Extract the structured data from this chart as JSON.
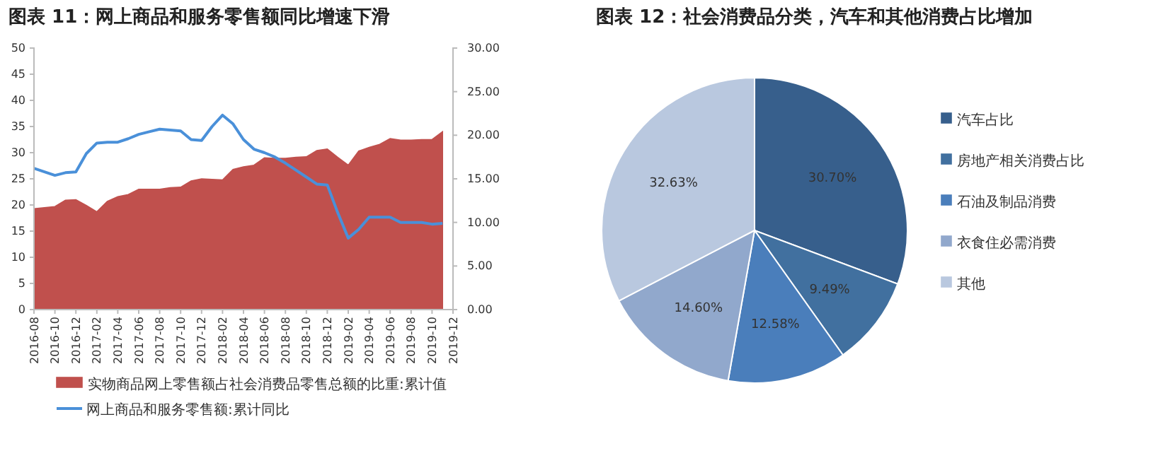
{
  "chart_data": [
    {
      "type": "area",
      "title": "图表 11：网上商品和服务零售额同比增速下滑",
      "categories": [
        "2016-08",
        null,
        "2016-10",
        null,
        "2016-12",
        null,
        "2017-02",
        null,
        "2017-04",
        null,
        "2017-06",
        null,
        "2017-08",
        null,
        "2017-10",
        null,
        "2017-12",
        null,
        "2018-02",
        null,
        "2018-04",
        null,
        "2018-06",
        null,
        "2018-08",
        null,
        "2018-10",
        null,
        "2018-12",
        null,
        "2019-02",
        null,
        "2019-04",
        null,
        "2019-06",
        null,
        "2019-08",
        null,
        "2019-10",
        null,
        "2019-12"
      ],
      "series": [
        {
          "name": "实物商品网上零售额占社会消费品零售总额的比重:累计值",
          "type": "area",
          "color": "#c0504d",
          "values": [
            19.3,
            19.5,
            19.7,
            20.9,
            21.0,
            19.9,
            18.7,
            20.7,
            21.6,
            22.0,
            23.0,
            23.0,
            23.0,
            23.3,
            23.4,
            24.6,
            25.0,
            24.9,
            24.8,
            26.8,
            27.3,
            27.6,
            29.0,
            28.9,
            28.9,
            29.1,
            29.2,
            30.4,
            30.7,
            29.1,
            27.6,
            30.3,
            31.0,
            31.6,
            32.7,
            32.4,
            32.4,
            32.5,
            32.5,
            34.0,
            null
          ]
        },
        {
          "name": "网上商品和服务零售额:累计同比",
          "type": "line",
          "axis": "y2",
          "color": "#4a90d9",
          "values": [
            16.2,
            15.8,
            15.4,
            15.7,
            15.8,
            17.9,
            19.1,
            19.2,
            19.2,
            19.6,
            20.1,
            20.4,
            20.7,
            20.6,
            20.5,
            19.5,
            19.4,
            21.0,
            22.3,
            21.3,
            19.5,
            18.4,
            18.0,
            17.5,
            16.8,
            16.0,
            15.2,
            14.4,
            14.3,
            11.1,
            8.2,
            9.2,
            10.6,
            10.6,
            10.6,
            10.0,
            10.0,
            10.0,
            9.8,
            9.9,
            null
          ]
        }
      ],
      "ylim": [
        0,
        50
      ],
      "yticks": [
        0,
        5,
        10,
        15,
        20,
        25,
        30,
        35,
        40,
        45,
        50
      ],
      "y2lim": [
        0,
        30
      ],
      "y2ticks": [
        {
          "value": 0,
          "label": "0.00"
        },
        {
          "value": 5,
          "label": "5.00"
        },
        {
          "value": 10,
          "label": "10.00"
        },
        {
          "value": 15,
          "label": "15.00"
        },
        {
          "value": 20,
          "label": "20.00"
        },
        {
          "value": 25,
          "label": "25.00"
        },
        {
          "value": 30,
          "label": "30.00"
        }
      ],
      "grid": false,
      "legend": "bottom",
      "line_style": "solid",
      "marker": "none"
    },
    {
      "type": "pie",
      "title": "图表 12：社会消费品分类，汽车和其他消费占比增加",
      "categories": [
        "汽车占比",
        "房地产相关消费占比",
        "石油及制品消费",
        "衣食住必需消费",
        "其他"
      ],
      "values": [
        30.7,
        9.49,
        12.58,
        14.6,
        32.63
      ],
      "colors": [
        "#375f8c",
        "#41709f",
        "#4a7ebb",
        "#91a8cc",
        "#b9c8df"
      ],
      "value_labels": [
        "30.70%",
        "9.49%",
        "12.58%",
        "14.60%",
        "32.63%"
      ],
      "legend": "right"
    }
  ]
}
